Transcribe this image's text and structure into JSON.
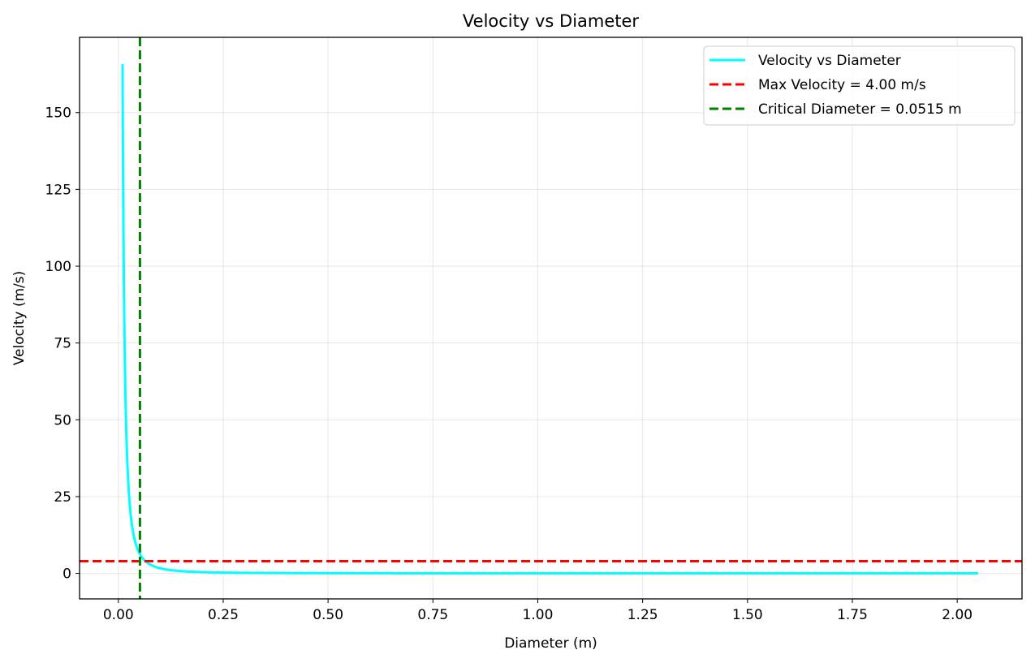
{
  "chart_data": {
    "type": "line",
    "title": "Velocity vs Diameter",
    "xlabel": "Diameter (m)",
    "ylabel": "Velocity (m/s)",
    "xlim": [
      -0.0925,
      2.1545
    ],
    "ylim": [
      -8.3,
      174.5
    ],
    "xticks": [
      0.0,
      0.25,
      0.5,
      0.75,
      1.0,
      1.25,
      1.5,
      1.75,
      2.0
    ],
    "xtick_labels": [
      "0.00",
      "0.25",
      "0.50",
      "0.75",
      "1.00",
      "1.25",
      "1.50",
      "1.75",
      "2.00"
    ],
    "yticks": [
      0,
      25,
      50,
      75,
      100,
      125,
      150
    ],
    "ytick_labels": [
      "0",
      "25",
      "50",
      "75",
      "100",
      "125",
      "150"
    ],
    "grid": true,
    "legend_position": "top-right",
    "series": [
      {
        "name": "Velocity vs Diameter",
        "color": "#00ffff",
        "style": "solid",
        "x_range": [
          0.01,
          2.05
        ],
        "y_at_start": 165.8,
        "x": [
          0.01,
          0.012,
          0.015,
          0.02,
          0.025,
          0.03,
          0.04,
          0.0515,
          0.06,
          0.08,
          0.1,
          0.15,
          0.2,
          0.3,
          0.5,
          0.75,
          1.0,
          1.5,
          2.05
        ],
        "y": [
          165.8,
          115.1,
          73.7,
          41.4,
          26.5,
          18.4,
          10.4,
          4.0,
          3.0,
          1.7,
          1.1,
          0.49,
          0.28,
          0.12,
          0.04,
          0.02,
          0.01,
          0.0,
          0.0
        ]
      }
    ],
    "reference_lines": [
      {
        "name": "Max Velocity = 4.00 m/s",
        "orientation": "horizontal",
        "value": 4.0,
        "color": "#ff0000",
        "style": "dashed"
      },
      {
        "name": "Critical Diameter = 0.0515 m",
        "orientation": "vertical",
        "value": 0.0515,
        "color": "#008000",
        "style": "dashed"
      }
    ]
  }
}
